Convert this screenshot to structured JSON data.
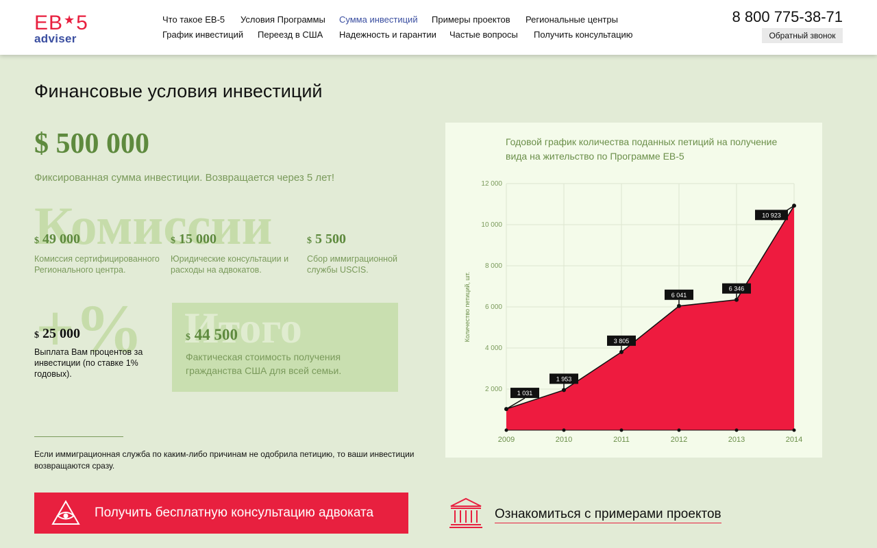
{
  "header": {
    "logo_top": "EB",
    "logo_star": "★",
    "logo_five": "5",
    "logo_bottom": "adviser",
    "nav": [
      {
        "label": "Что такое ЕВ-5"
      },
      {
        "label": "Условия Программы"
      },
      {
        "label": "Сумма инвестиций",
        "active": true
      },
      {
        "label": "Примеры проектов"
      },
      {
        "label": "Региональные центры"
      },
      {
        "label": "График инвестиций"
      },
      {
        "label": "Переезд в США"
      },
      {
        "label": "Надежность и гарантии"
      },
      {
        "label": "Частые вопросы"
      },
      {
        "label": "Получить консультацию"
      }
    ],
    "phone": "8 800 775-38-71",
    "callback": "Обратный звонок"
  },
  "main": {
    "title": "Финансовые условия инвестиций",
    "investment": {
      "amount": "$ 500 000",
      "desc": "Фиксированная сумма инвестиции. Возвращается через 5 лет!"
    },
    "commissions_word": "Комиссии",
    "fees": [
      {
        "currency": "$",
        "value": "49 000",
        "desc": "Комиссия сертифицированного Регионального центра."
      },
      {
        "currency": "$",
        "value": "15 000",
        "desc": "Юридические консультации и расходы на адвокатов."
      },
      {
        "currency": "$",
        "value": "5 500",
        "desc": "Сбор иммиграционной службы USCIS."
      }
    ],
    "interest_word": "+%",
    "interest": {
      "currency": "$",
      "value": "25 000",
      "desc": "Выплата Вам процентов за инвестиции (по ставке 1% годовых)."
    },
    "total_word": "Итого",
    "total": {
      "currency": "$",
      "value": "44 500",
      "desc": "Фактическая стоимость получения гражданства США для всей семьи."
    },
    "note": "Если иммиграционная служба по каким-либо причинам не одобрила петицию, то ваши инвестиции возвращаются сразу.",
    "cta_label": "Получить бесплатную консультацию адвоката",
    "examples_label": "Ознакомиться с примерами проектов"
  },
  "colors": {
    "accent": "#e8203f",
    "brand_blue": "#3a4ea0",
    "green": "#5e8a3e",
    "background": "#e2ebd6"
  },
  "icons": {
    "cta": "eye-triangle-icon",
    "examples": "building-columns-icon"
  },
  "chart_data": {
    "type": "area",
    "title": "Годовой график количества поданных петиций на получение вида на жительство по Программе ЕВ-5",
    "ylabel": "Количество петиций, шт.",
    "xlabel": "",
    "x": [
      "2009",
      "2010",
      "2011",
      "2012",
      "2013",
      "2014"
    ],
    "values": [
      1031,
      1953,
      3805,
      6041,
      6346,
      10923
    ],
    "data_labels": [
      "1 031",
      "1 953",
      "3 805",
      "6 041",
      "6 346",
      "10 923"
    ],
    "ylim": [
      0,
      12000
    ],
    "y_ticks": [
      2000,
      4000,
      6000,
      8000,
      10000,
      12000
    ],
    "y_tick_labels": [
      "2 000",
      "4 000",
      "6 000",
      "8 000",
      "10 000",
      "12 000"
    ],
    "grid": true,
    "legend": "none",
    "fill_color": "#ee1b3f"
  }
}
